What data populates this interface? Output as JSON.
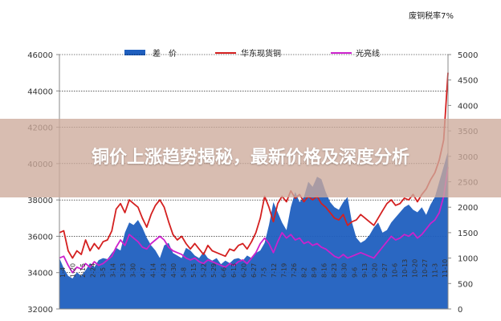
{
  "banner": {
    "headline": "铜价上涨趋势揭秘，最新价格及深度分析"
  },
  "chart_data": {
    "type": "line",
    "annotation": "废铜税率7%",
    "legend": {
      "placement": "top-center"
    },
    "grid": true,
    "ylim_left": [
      32000,
      46000
    ],
    "yticks_left": [
      32000,
      34000,
      36000,
      38000,
      40000,
      42000,
      44000,
      46000
    ],
    "ylim_right": [
      0,
      5000
    ],
    "yticks_right": [
      0,
      500,
      1000,
      1500,
      2000,
      2500,
      3000,
      3500,
      4000,
      4500,
      5000
    ],
    "x_tick_labels": [
      "1-4",
      "1-20",
      "2-15",
      "2-24",
      "3-5",
      "3-14",
      "3-23",
      "3-30",
      "4-7",
      "4-14",
      "4-23",
      "4-30",
      "5-8",
      "5-15",
      "5-22",
      "5-29",
      "6-6",
      "6-13",
      "6-20",
      "6-27",
      "7-5",
      "7-12",
      "7-19",
      "7-26",
      "8-2",
      "8-9",
      "8-16",
      "8-23",
      "8-30",
      "9-6",
      "9-13",
      "9-20",
      "9-27",
      "10-6",
      "10-13",
      "10-20",
      "10-27",
      "11-3",
      "11-10"
    ],
    "series": [
      {
        "name": "差　价",
        "kind": "area",
        "axis": "right",
        "color": "#1f5fbf",
        "values": [
          1000,
          800,
          650,
          600,
          720,
          650,
          760,
          900,
          820,
          960,
          1000,
          980,
          1100,
          1200,
          1150,
          1500,
          1700,
          1650,
          1750,
          1600,
          1400,
          1250,
          1150,
          1000,
          1250,
          1300,
          1100,
          1050,
          1000,
          1200,
          1150,
          1050,
          1000,
          1120,
          1000,
          950,
          1000,
          880,
          950,
          900,
          980,
          1000,
          950,
          1050,
          1000,
          1100,
          1150,
          1300,
          1650,
          2100,
          1900,
          1700,
          1550,
          2000,
          2300,
          2100,
          2200,
          2500,
          2400,
          2600,
          2550,
          2300,
          2100,
          2000,
          1950,
          2100,
          2200,
          1700,
          1400,
          1300,
          1350,
          1450,
          1600,
          1700,
          1500,
          1550,
          1700,
          1800,
          1900,
          2000,
          2050,
          1950,
          1900,
          2000,
          1850,
          2050,
          2200,
          2500,
          2800,
          3100
        ]
      },
      {
        "name": "华东现货铜",
        "kind": "line",
        "axis": "left",
        "color": "#d42020",
        "values": [
          36200,
          36300,
          35200,
          34800,
          35200,
          35000,
          35800,
          35200,
          35600,
          35300,
          35700,
          35800,
          36300,
          37500,
          37800,
          37300,
          38000,
          37800,
          37600,
          37000,
          36500,
          37200,
          37700,
          38000,
          37600,
          36800,
          36100,
          35800,
          36000,
          35600,
          35300,
          35600,
          35300,
          35000,
          35500,
          35200,
          35100,
          35000,
          34900,
          35300,
          35200,
          35500,
          35600,
          35300,
          35700,
          36200,
          37000,
          38200,
          37600,
          36800,
          37800,
          38200,
          37900,
          38500,
          38100,
          38300,
          37900,
          38200,
          38000,
          38200,
          37800,
          37600,
          37300,
          37000,
          36900,
          37200,
          36600,
          36800,
          36900,
          37200,
          37000,
          36800,
          36600,
          37000,
          37400,
          37800,
          38000,
          37700,
          37800,
          38100,
          38000,
          38300,
          37900,
          38300,
          38600,
          39100,
          39500,
          40200,
          41300,
          45000
        ]
      },
      {
        "name": "光亮线",
        "kind": "line",
        "axis": "left",
        "color": "#cc22cc",
        "values": [
          34800,
          34900,
          34400,
          34000,
          34300,
          34200,
          34500,
          34300,
          34600,
          34400,
          34500,
          34700,
          34900,
          35400,
          35800,
          35500,
          36100,
          35900,
          35700,
          35400,
          35300,
          35600,
          35800,
          36000,
          35800,
          35400,
          35200,
          35100,
          35000,
          34800,
          34700,
          34800,
          34600,
          34500,
          34700,
          34600,
          34500,
          34400,
          34300,
          34500,
          34400,
          34600,
          34700,
          34500,
          34800,
          35100,
          35600,
          35900,
          35600,
          35100,
          35700,
          36200,
          35900,
          36100,
          35800,
          35900,
          35600,
          35700,
          35500,
          35600,
          35400,
          35300,
          35100,
          34900,
          34800,
          35000,
          34800,
          34900,
          35000,
          35100,
          35000,
          34900,
          34800,
          35100,
          35400,
          35700,
          36000,
          35800,
          35900,
          36100,
          36000,
          36200,
          35900,
          36100,
          36400,
          36700,
          36900,
          37300,
          38200,
          39800
        ]
      }
    ]
  }
}
